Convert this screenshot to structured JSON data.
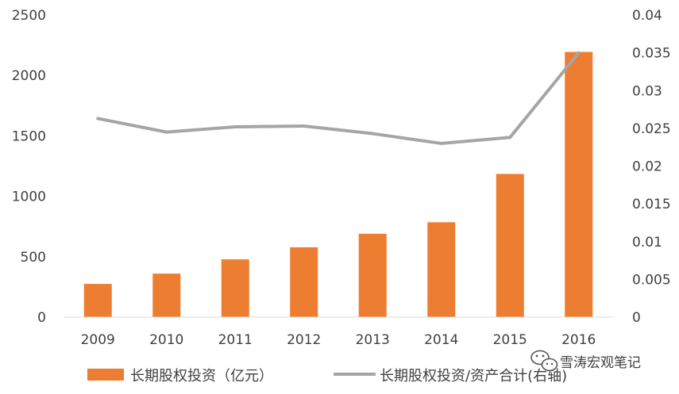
{
  "chart_data": {
    "type": "bar+line",
    "categories": [
      "2009",
      "2010",
      "2011",
      "2012",
      "2013",
      "2014",
      "2015",
      "2016"
    ],
    "series": [
      {
        "name": "长期股权投资（亿元）",
        "type": "bar",
        "axis": "left",
        "color": "#ED7D31",
        "values": [
          275,
          360,
          478,
          578,
          690,
          785,
          1185,
          2195
        ]
      },
      {
        "name": "长期股权投资/资产合计(右轴)",
        "type": "line",
        "axis": "right",
        "color": "#A5A5A5",
        "values": [
          0.0263,
          0.0245,
          0.0252,
          0.0253,
          0.0243,
          0.023,
          0.0238,
          0.035
        ]
      }
    ],
    "y_left": {
      "range": [
        0,
        2500
      ],
      "ticks": [
        0,
        500,
        1000,
        1500,
        2000,
        2500
      ],
      "tick_labels": [
        "0",
        "500",
        "1000",
        "1500",
        "2000",
        "2500"
      ]
    },
    "y_right": {
      "range": [
        0,
        0.04
      ],
      "ticks": [
        0,
        0.005,
        0.01,
        0.015,
        0.02,
        0.025,
        0.03,
        0.035,
        0.04
      ],
      "tick_labels": [
        "0",
        "0.005",
        "0.01",
        "0.015",
        "0.02",
        "0.025",
        "0.03",
        "0.035",
        "0.04"
      ]
    },
    "grid": false,
    "legend_position": "bottom"
  },
  "watermark": {
    "text": "雪涛宏观笔记",
    "icon": "wechat-icon"
  }
}
